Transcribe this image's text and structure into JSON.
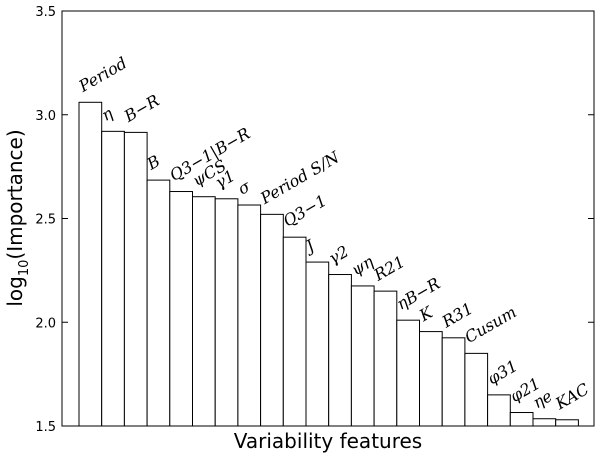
{
  "chart_data": {
    "type": "bar",
    "xlabel": "Variability features",
    "ylabel": "log10(Importance)",
    "ylabel_base": "log",
    "ylabel_sub": "10",
    "ylabel_rest": "(Importance)",
    "ylim": [
      1.5,
      3.5
    ],
    "yticks": [
      "1.5",
      "2.0",
      "2.5",
      "3.0",
      "3.5"
    ],
    "grid": false,
    "categories": [
      "Period",
      "η",
      "B−R",
      "B",
      "Q3−1|B−R",
      "ψCS",
      "γ1",
      "σ",
      "Period S/N",
      "Q3−1",
      "J",
      "γ2",
      "ψη",
      "R21",
      "ηB−R",
      "K",
      "R31",
      "Cusum",
      "φ31",
      "φ21",
      "ηe",
      "KAC"
    ],
    "values": [
      3.06,
      2.92,
      2.915,
      2.685,
      2.63,
      2.605,
      2.595,
      2.565,
      2.52,
      2.41,
      2.29,
      2.23,
      2.175,
      2.15,
      2.01,
      1.955,
      1.925,
      1.85,
      1.65,
      1.565,
      1.535,
      1.53
    ],
    "bar_colors": {
      "fill": "#ffffff",
      "stroke": "#000000"
    }
  }
}
